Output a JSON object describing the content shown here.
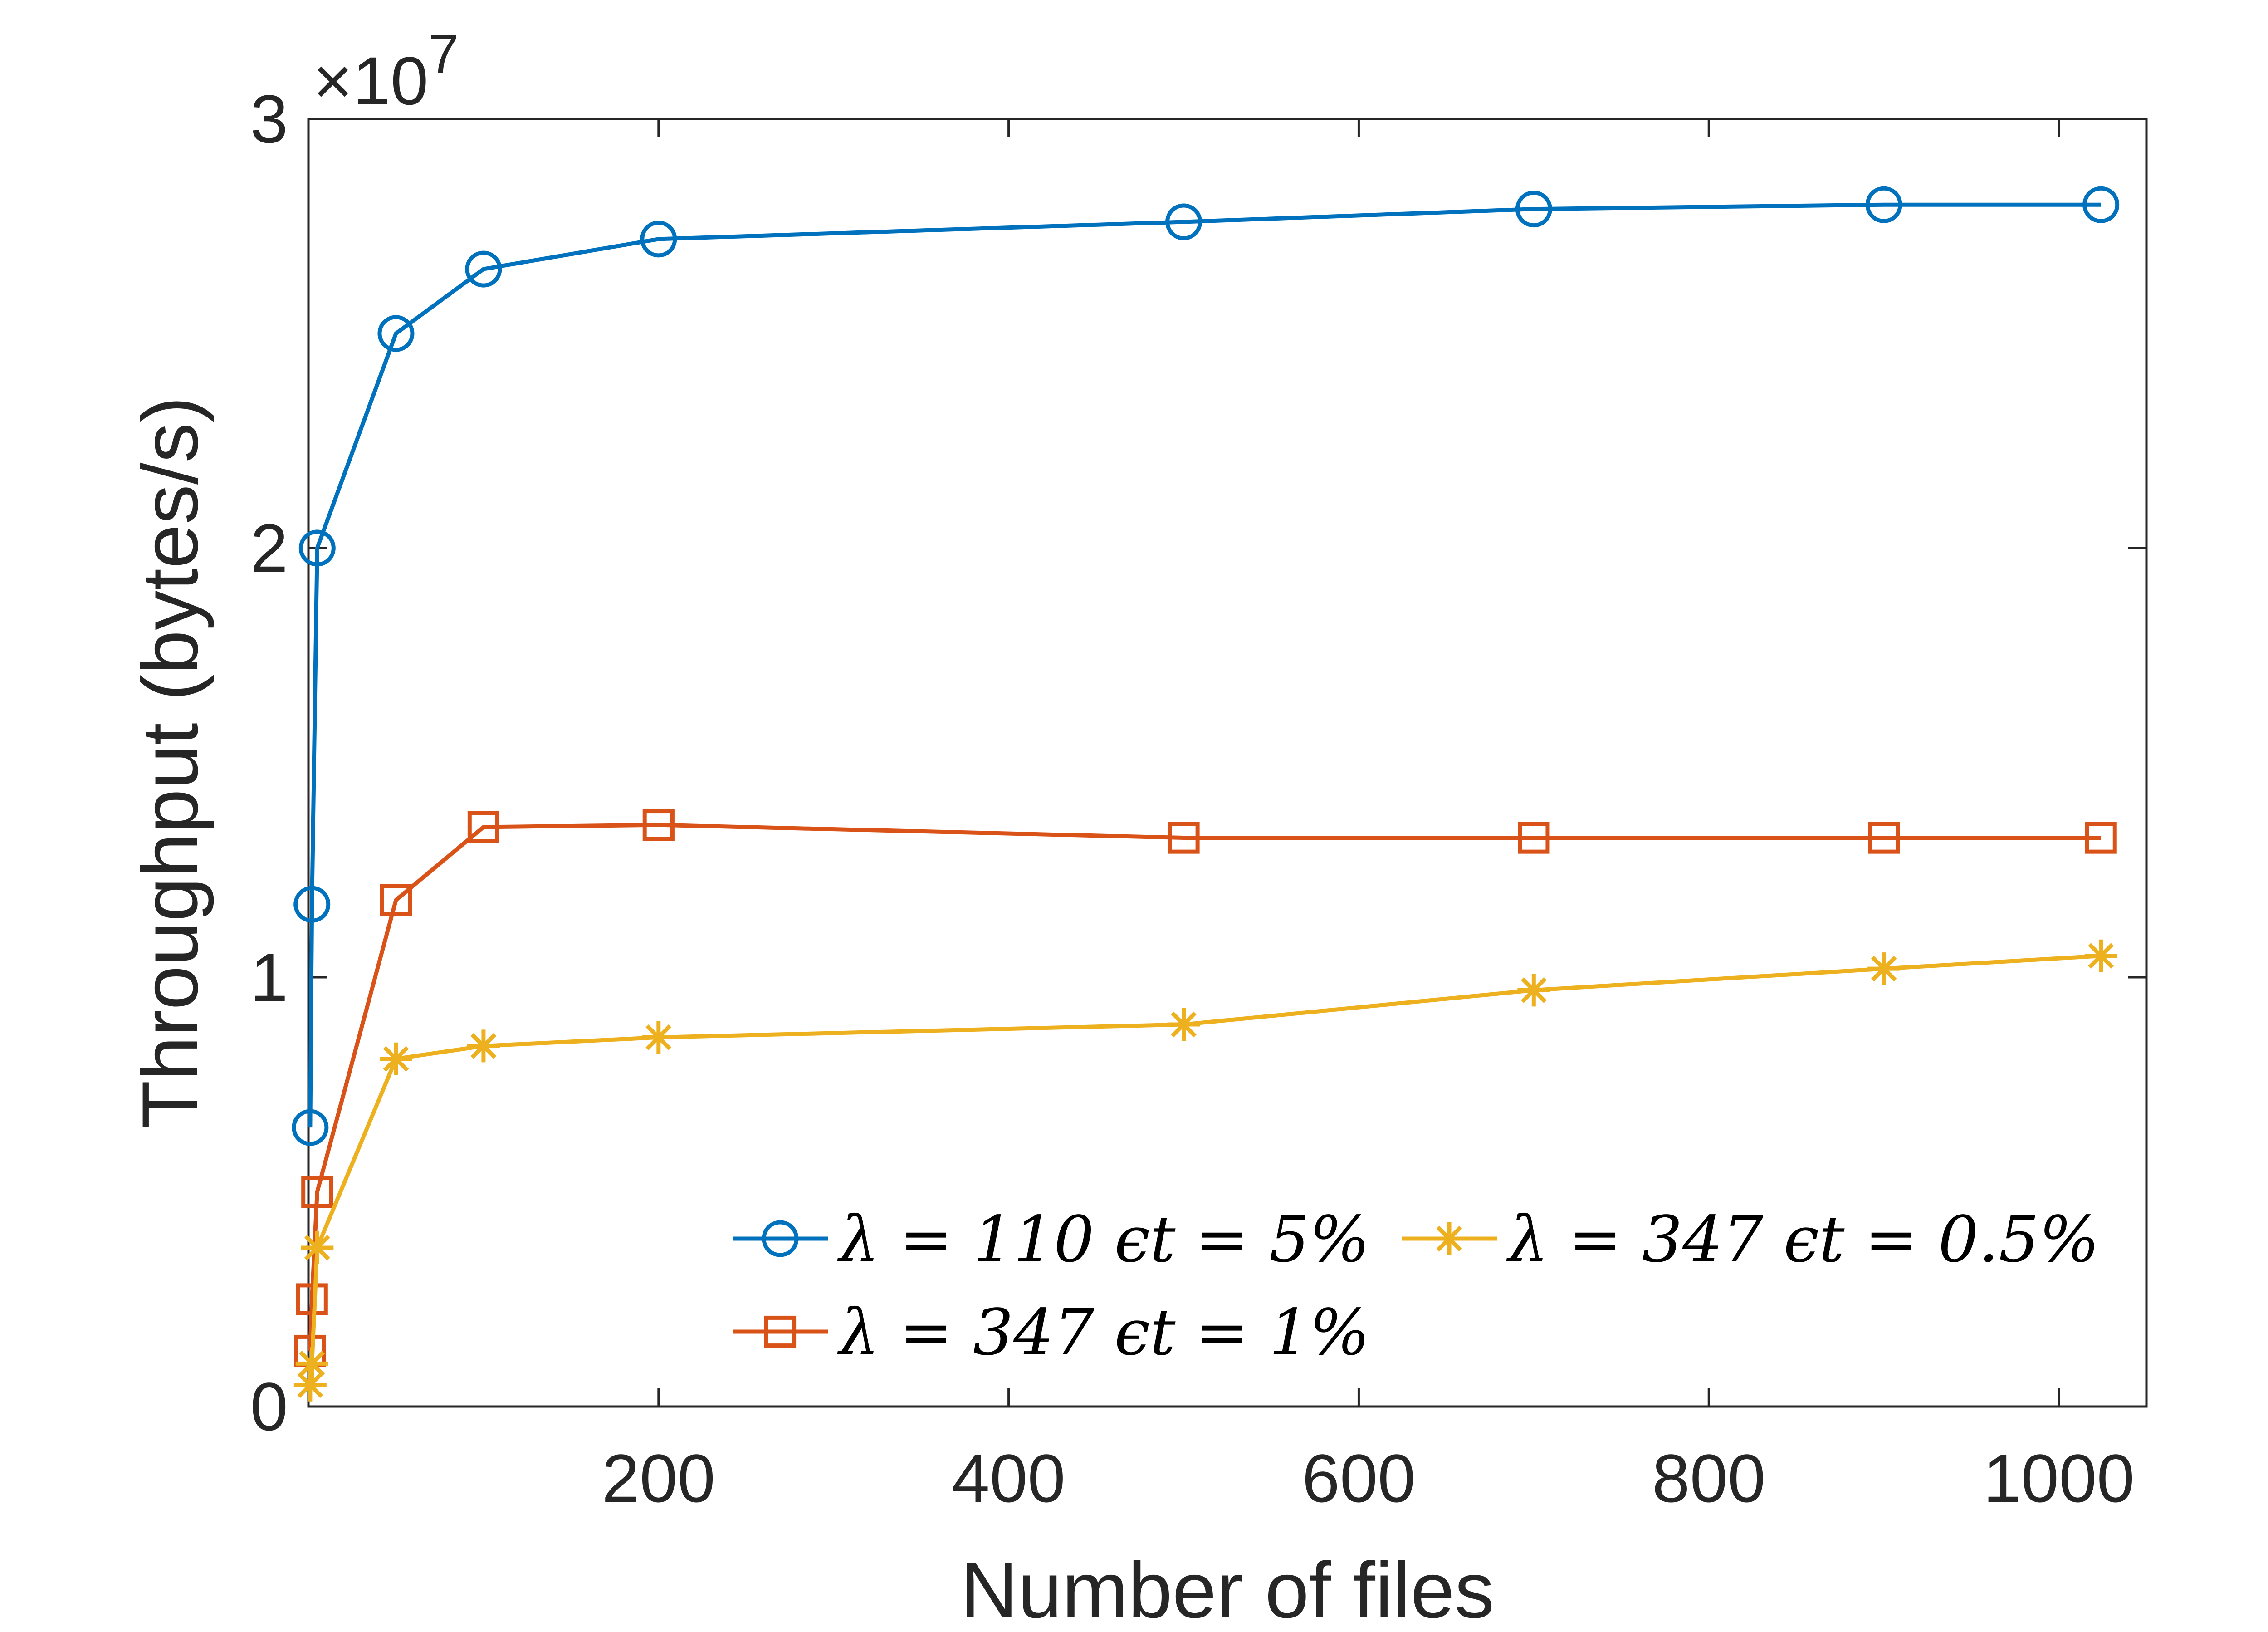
{
  "chart_data": {
    "type": "line",
    "xlabel": "Number of files",
    "ylabel": "Throughput (bytes/s)",
    "xlim": [
      0,
      1050
    ],
    "ylim": [
      0,
      3
    ],
    "y_exponent_label": "×10",
    "y_exponent_power": "7",
    "xticks": [
      200,
      400,
      600,
      800,
      1000
    ],
    "xtick_labels": [
      "200",
      "400",
      "600",
      "800",
      "1000"
    ],
    "yticks": [
      0,
      1,
      2,
      3
    ],
    "ytick_labels": [
      "0",
      "1",
      "2",
      "3"
    ],
    "grid": false,
    "legend_position": "lower-right",
    "series": [
      {
        "name": "λ = 110 ϵt = 5%",
        "color": "#0072BD",
        "marker": "circle",
        "x": [
          1,
          2,
          5,
          50,
          100,
          200,
          500,
          700,
          900,
          1024
        ],
        "y": [
          0.65,
          1.17,
          2.0,
          2.5,
          2.65,
          2.72,
          2.76,
          2.79,
          2.8,
          2.8
        ]
      },
      {
        "name": "λ = 347 ϵt = 1%",
        "color": "#D95319",
        "marker": "square",
        "x": [
          1,
          2,
          5,
          50,
          100,
          200,
          500,
          700,
          900,
          1024
        ],
        "y": [
          0.13,
          0.25,
          0.5,
          1.18,
          1.35,
          1.355,
          1.325,
          1.325,
          1.325,
          1.325
        ]
      },
      {
        "name": "λ = 347 ϵt = 0.5%",
        "color": "#EDB120",
        "marker": "asterisk",
        "x": [
          1,
          2,
          5,
          50,
          100,
          200,
          500,
          700,
          900,
          1024
        ],
        "y": [
          0.05,
          0.1,
          0.37,
          0.81,
          0.84,
          0.86,
          0.89,
          0.97,
          1.02,
          1.05
        ]
      }
    ]
  }
}
